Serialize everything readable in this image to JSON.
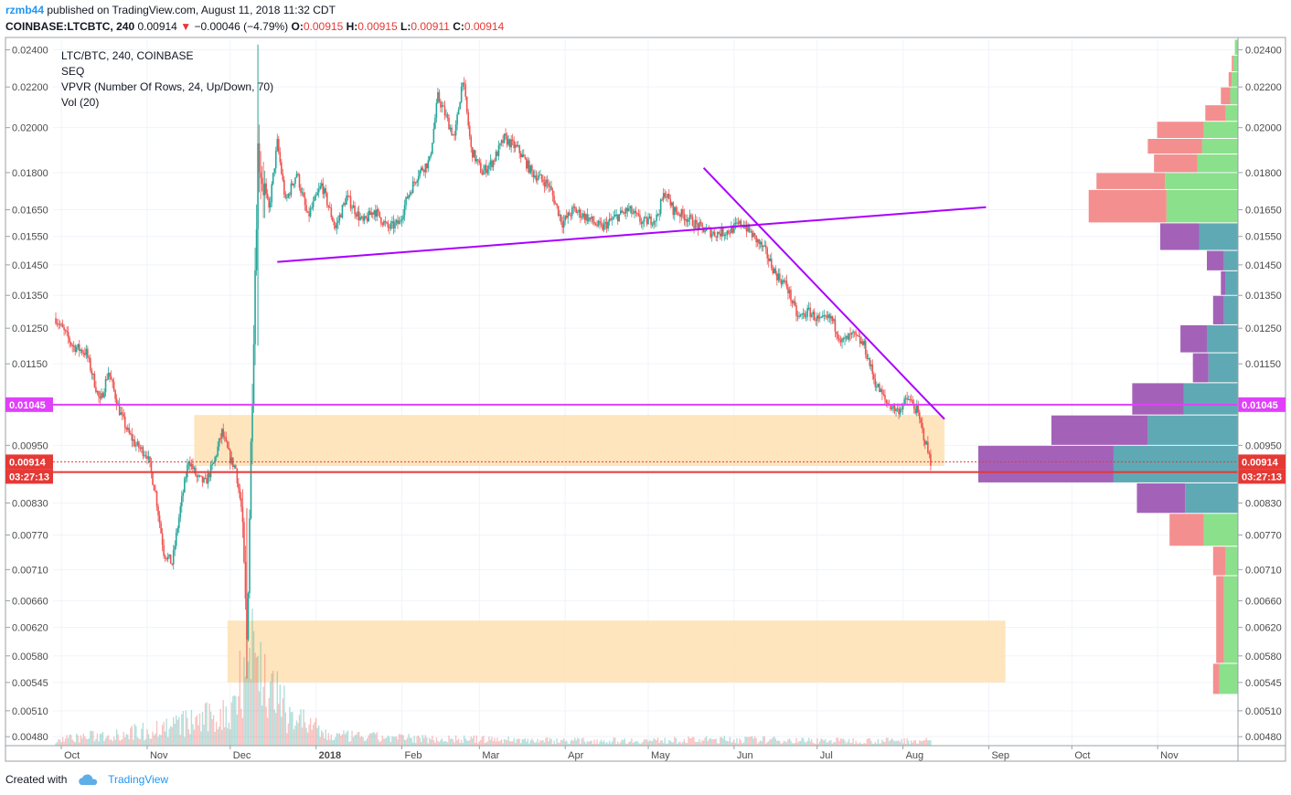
{
  "header": {
    "user": "rzmb44",
    "published": "published on TradingView.com, August 11, 2018 11:32 CDT",
    "symbol": "COINBASE:LTCBTC, 240",
    "last": "0.00914",
    "change_arrow": "▼",
    "change": "−0.00046 (−4.79%)",
    "o_label": "O:",
    "o": "0.00915",
    "h_label": "H:",
    "h": "0.00915",
    "l_label": "L:",
    "l": "0.00911",
    "c_label": "C:",
    "c": "0.00914"
  },
  "legend": {
    "line1": "LTC/BTC, 240, COINBASE",
    "line2": "SEQ",
    "line3": "VPVR (Number Of Rows, 24, Up/Down, 70)",
    "line4": "Vol (20)"
  },
  "footer": {
    "created_with": "Created with",
    "brand": "TradingView"
  },
  "colors": {
    "up": "#26a69a",
    "down": "#ef5350",
    "trendline": "#aa00ff",
    "support_line": "#e040fb",
    "price_line": "#e53935",
    "zone": "#ffe0b2",
    "vp_up": "#8be08b",
    "vp_down": "#f48f8f",
    "vp_up_va": "#5fa9b4",
    "vp_down_va": "#a362b8"
  },
  "chart_data": {
    "type": "candlestick",
    "title": "LTC/BTC, 240, COINBASE",
    "y_scale": "log",
    "ylim": [
      0.0047,
      0.0246
    ],
    "x_tick_labels": [
      "Oct",
      "Nov",
      "Dec",
      "2018",
      "Feb",
      "Mar",
      "Apr",
      "May",
      "Jun",
      "Jul",
      "Aug",
      "Sep",
      "Oct",
      "Nov"
    ],
    "x_tick_dates": [
      "2017-10-01",
      "2017-11-01",
      "2017-12-01",
      "2018-01-01",
      "2018-02-01",
      "2018-03-01",
      "2018-04-01",
      "2018-05-01",
      "2018-06-01",
      "2018-07-01",
      "2018-08-01",
      "2018-09-01",
      "2018-10-01",
      "2018-11-01"
    ],
    "y_tick_labels": [
      "0.02400",
      "0.02200",
      "0.02000",
      "0.01800",
      "0.01650",
      "0.01550",
      "0.01450",
      "0.01350",
      "0.01250",
      "0.01150",
      "0.00950",
      "0.00830",
      "0.00770",
      "0.00710",
      "0.00660",
      "0.00620",
      "0.00580",
      "0.00545",
      "0.00510",
      "0.00480"
    ],
    "y_ticks": [
      0.024,
      0.022,
      0.02,
      0.018,
      0.0165,
      0.0155,
      0.0145,
      0.0135,
      0.0125,
      0.0115,
      0.0095,
      0.0083,
      0.0077,
      0.0071,
      0.0066,
      0.0062,
      0.0058,
      0.00545,
      0.0051,
      0.0048
    ],
    "price_path": [
      [
        "2017-09-29",
        0.0128
      ],
      [
        "2017-10-05",
        0.012
      ],
      [
        "2017-10-10",
        0.0118
      ],
      [
        "2017-10-15",
        0.0105
      ],
      [
        "2017-10-18",
        0.0113
      ],
      [
        "2017-10-22",
        0.0103
      ],
      [
        "2017-10-25",
        0.0098
      ],
      [
        "2017-10-28",
        0.0095
      ],
      [
        "2017-11-01",
        0.0093
      ],
      [
        "2017-11-04",
        0.0085
      ],
      [
        "2017-11-07",
        0.0074
      ],
      [
        "2017-11-10",
        0.0072
      ],
      [
        "2017-11-13",
        0.0082
      ],
      [
        "2017-11-16",
        0.0092
      ],
      [
        "2017-11-19",
        0.0088
      ],
      [
        "2017-11-22",
        0.0087
      ],
      [
        "2017-11-25",
        0.0091
      ],
      [
        "2017-11-28",
        0.0098
      ],
      [
        "2017-12-01",
        0.0092
      ],
      [
        "2017-12-03",
        0.009
      ],
      [
        "2017-12-05",
        0.0082
      ],
      [
        "2017-12-07",
        0.006
      ],
      [
        "2017-12-09",
        0.011
      ],
      [
        "2017-12-11",
        0.019
      ],
      [
        "2017-12-13",
        0.0175
      ],
      [
        "2017-12-15",
        0.0165
      ],
      [
        "2017-12-18",
        0.0193
      ],
      [
        "2017-12-21",
        0.0168
      ],
      [
        "2017-12-25",
        0.018
      ],
      [
        "2017-12-29",
        0.0162
      ],
      [
        "2018-01-03",
        0.0175
      ],
      [
        "2018-01-08",
        0.0158
      ],
      [
        "2018-01-12",
        0.017
      ],
      [
        "2018-01-18",
        0.016
      ],
      [
        "2018-01-22",
        0.0165
      ],
      [
        "2018-01-27",
        0.0158
      ],
      [
        "2018-01-31",
        0.016
      ],
      [
        "2018-02-03",
        0.017
      ],
      [
        "2018-02-07",
        0.018
      ],
      [
        "2018-02-11",
        0.0185
      ],
      [
        "2018-02-14",
        0.0215
      ],
      [
        "2018-02-17",
        0.0205
      ],
      [
        "2018-02-20",
        0.0195
      ],
      [
        "2018-02-23",
        0.0225
      ],
      [
        "2018-02-26",
        0.019
      ],
      [
        "2018-03-02",
        0.018
      ],
      [
        "2018-03-06",
        0.0185
      ],
      [
        "2018-03-10",
        0.0195
      ],
      [
        "2018-03-15",
        0.019
      ],
      [
        "2018-03-20",
        0.018
      ],
      [
        "2018-03-26",
        0.0175
      ],
      [
        "2018-03-31",
        0.016
      ],
      [
        "2018-04-04",
        0.0165
      ],
      [
        "2018-04-09",
        0.0162
      ],
      [
        "2018-04-14",
        0.0158
      ],
      [
        "2018-04-19",
        0.0162
      ],
      [
        "2018-04-24",
        0.0165
      ],
      [
        "2018-04-29",
        0.016
      ],
      [
        "2018-05-04",
        0.0162
      ],
      [
        "2018-05-07",
        0.0172
      ],
      [
        "2018-05-10",
        0.0165
      ],
      [
        "2018-05-15",
        0.0162
      ],
      [
        "2018-05-20",
        0.0158
      ],
      [
        "2018-05-25",
        0.0156
      ],
      [
        "2018-05-30",
        0.0157
      ],
      [
        "2018-06-04",
        0.016
      ],
      [
        "2018-06-08",
        0.0155
      ],
      [
        "2018-06-12",
        0.015
      ],
      [
        "2018-06-16",
        0.0142
      ],
      [
        "2018-06-20",
        0.0138
      ],
      [
        "2018-06-24",
        0.0128
      ],
      [
        "2018-06-28",
        0.013
      ],
      [
        "2018-07-02",
        0.0127
      ],
      [
        "2018-07-06",
        0.0128
      ],
      [
        "2018-07-10",
        0.0121
      ],
      [
        "2018-07-14",
        0.0123
      ],
      [
        "2018-07-18",
        0.012
      ],
      [
        "2018-07-22",
        0.011
      ],
      [
        "2018-07-26",
        0.0105
      ],
      [
        "2018-07-30",
        0.0103
      ],
      [
        "2018-08-03",
        0.0106
      ],
      [
        "2018-08-06",
        0.0103
      ],
      [
        "2018-08-09",
        0.0096
      ],
      [
        "2018-08-11",
        0.00914
      ]
    ],
    "volume_path": [
      [
        "2017-09-29",
        0.05
      ],
      [
        "2017-10-15",
        0.08
      ],
      [
        "2017-11-01",
        0.12
      ],
      [
        "2017-11-15",
        0.18
      ],
      [
        "2017-12-01",
        0.25
      ],
      [
        "2017-12-08",
        0.9
      ],
      [
        "2017-12-12",
        0.6
      ],
      [
        "2017-12-20",
        0.3
      ],
      [
        "2018-01-05",
        0.08
      ],
      [
        "2018-02-01",
        0.06
      ],
      [
        "2018-03-01",
        0.05
      ],
      [
        "2018-04-01",
        0.04
      ],
      [
        "2018-05-01",
        0.04
      ],
      [
        "2018-06-01",
        0.05
      ],
      [
        "2018-07-01",
        0.04
      ],
      [
        "2018-08-01",
        0.04
      ],
      [
        "2018-08-11",
        0.04
      ]
    ],
    "trendlines": [
      {
        "from": [
          "2017-12-18",
          0.0146
        ],
        "to": [
          "2018-08-31",
          0.0166
        ]
      },
      {
        "from": [
          "2018-05-21",
          0.0182
        ],
        "to": [
          "2018-08-16",
          0.0101
        ]
      }
    ],
    "horizontal_levels": [
      {
        "price": 0.01045,
        "label": "0.01045",
        "style": "support"
      },
      {
        "price": 0.00914,
        "label": "0.00914",
        "style": "last"
      },
      {
        "price": 0.009,
        "label": "03:27:13",
        "style": "countdown"
      }
    ],
    "zones": [
      {
        "x0": "2017-11-18",
        "x1": "2018-08-16",
        "y0": 0.0102,
        "y1": 0.00905
      },
      {
        "x0": "2017-11-30",
        "x1": "2018-09-07",
        "y0": 0.0063,
        "y1": 0.00545
      }
    ],
    "volume_profile": {
      "rows": [
        {
          "lo": 0.0237,
          "hi": 0.0246,
          "up": 2,
          "down": 0
        },
        {
          "lo": 0.0228,
          "hi": 0.0237,
          "up": 3,
          "down": 1
        },
        {
          "lo": 0.022,
          "hi": 0.0228,
          "up": 4,
          "down": 2
        },
        {
          "lo": 0.0211,
          "hi": 0.022,
          "up": 5,
          "down": 6
        },
        {
          "lo": 0.0203,
          "hi": 0.0211,
          "up": 8,
          "down": 13
        },
        {
          "lo": 0.0195,
          "hi": 0.0203,
          "up": 22,
          "down": 30
        },
        {
          "lo": 0.0188,
          "hi": 0.0195,
          "up": 23,
          "down": 35
        },
        {
          "lo": 0.018,
          "hi": 0.0188,
          "up": 26,
          "down": 28
        },
        {
          "lo": 0.0173,
          "hi": 0.018,
          "up": 47,
          "down": 44
        },
        {
          "lo": 0.016,
          "hi": 0.0173,
          "up": 46,
          "down": 50
        },
        {
          "lo": 0.015,
          "hi": 0.016,
          "up": 25,
          "down": 25
        },
        {
          "lo": 0.0143,
          "hi": 0.015,
          "up": 9,
          "down": 11
        },
        {
          "lo": 0.0135,
          "hi": 0.0143,
          "up": 8,
          "down": 3
        },
        {
          "lo": 0.0126,
          "hi": 0.0135,
          "up": 9,
          "down": 7
        },
        {
          "lo": 0.0118,
          "hi": 0.0126,
          "up": 20,
          "down": 17
        },
        {
          "lo": 0.011,
          "hi": 0.0118,
          "up": 19,
          "down": 10
        },
        {
          "lo": 0.0102,
          "hi": 0.011,
          "up": 35,
          "down": 33
        },
        {
          "lo": 0.0095,
          "hi": 0.0102,
          "up": 58,
          "down": 62
        },
        {
          "lo": 0.0087,
          "hi": 0.0095,
          "up": 80,
          "down": 87
        },
        {
          "lo": 0.0081,
          "hi": 0.0087,
          "up": 34,
          "down": 31
        },
        {
          "lo": 0.0075,
          "hi": 0.0081,
          "up": 22,
          "down": 22
        },
        {
          "lo": 0.007,
          "hi": 0.0075,
          "up": 8,
          "down": 8
        },
        {
          "lo": 0.0057,
          "hi": 0.007,
          "up": 9,
          "down": 5
        },
        {
          "lo": 0.0053,
          "hi": 0.0057,
          "up": 12,
          "down": 4
        }
      ],
      "value_area": [
        0.0081,
        0.016
      ]
    }
  }
}
